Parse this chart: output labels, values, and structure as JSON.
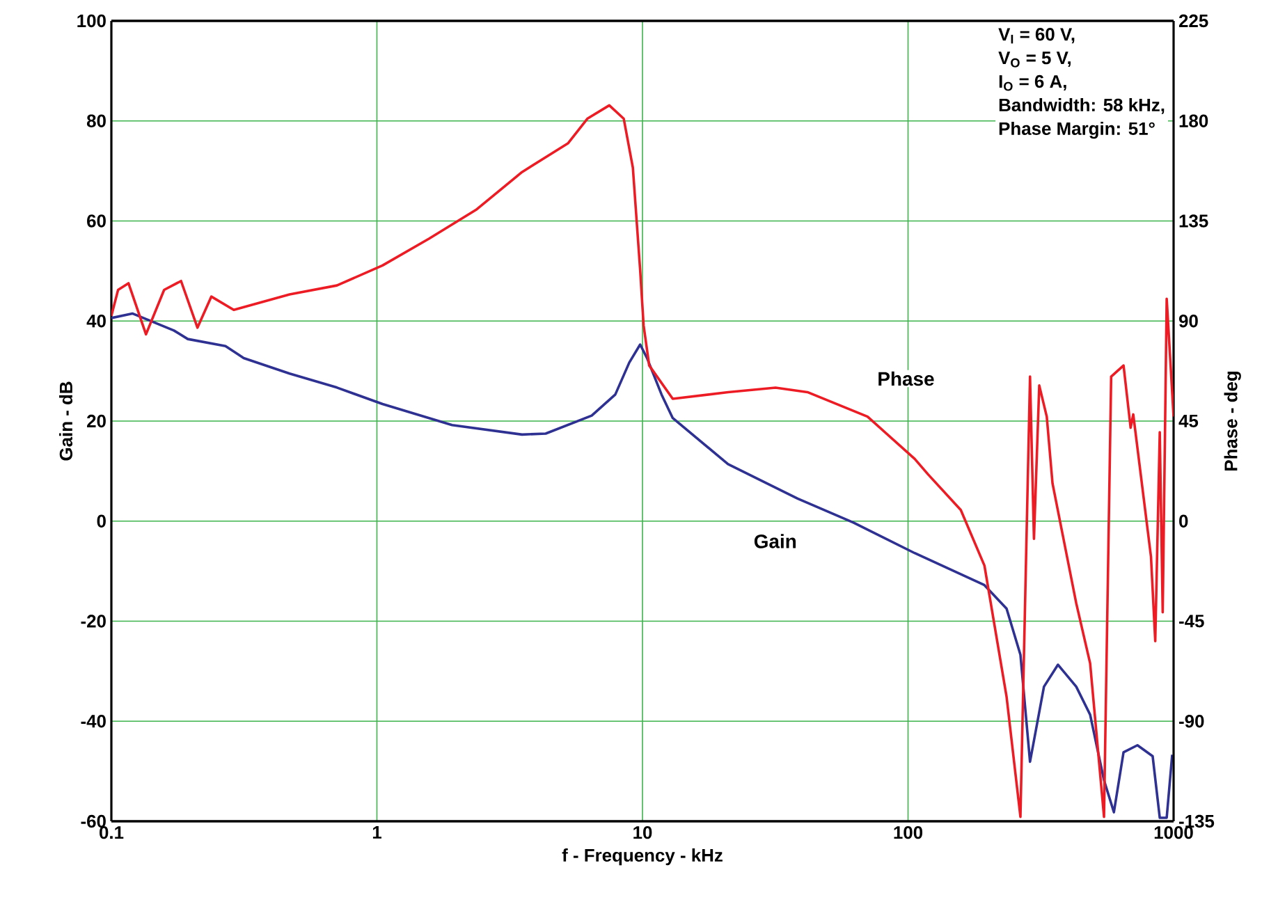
{
  "chart_data": {
    "type": "line",
    "xlabel": "f - Frequency - kHz",
    "ylabel": "Gain - dB",
    "y2label": "Phase - deg",
    "log": "x",
    "grid": true,
    "xlim": [
      0.1,
      1000
    ],
    "xticks": [
      0.1,
      1,
      10,
      100,
      1000
    ],
    "ylim": [
      -60,
      100
    ],
    "yticks": [
      -60,
      -40,
      -20,
      0,
      20,
      40,
      60,
      80,
      100
    ],
    "y2lim": [
      -135,
      225
    ],
    "y2ticks": [
      -135,
      -90,
      -45,
      0,
      45,
      90,
      135,
      180,
      225
    ],
    "annotations": [
      "V$_{I}$ = 60 V,",
      "V$_{O}$ = 5 V,",
      "I$_{O}$ = 6 A,",
      "Bandwidth: 58 kHz,",
      "Phase Margin: 51°"
    ],
    "series": [
      {
        "name": "Gain",
        "color": "#2e3192",
        "x": [
          0.1,
          0.12,
          0.172,
          0.194,
          0.269,
          0.315,
          0.469,
          0.707,
          1.05,
          1.92,
          3.52,
          4.32,
          6.44,
          7.9,
          8.92,
          9.8,
          10.4,
          11.8,
          13,
          21,
          38.4,
          62.3,
          106,
          194,
          235,
          265,
          288,
          325,
          367,
          430,
          485,
          547,
          596,
          648,
          731,
          834,
          887,
          942,
          988
        ],
        "values": [
          40.6,
          41.5,
          38.1,
          36.4,
          35,
          32.6,
          29.5,
          26.7,
          23.4,
          19.2,
          17.3,
          17.5,
          21.1,
          25.3,
          31.7,
          35.3,
          32.6,
          25.3,
          20.6,
          11.4,
          4.5,
          -0.3,
          -6.4,
          -12.8,
          -17.5,
          -26.7,
          -48.1,
          -33.1,
          -28.7,
          -33.1,
          -38.7,
          -51.8,
          -58.2,
          -46.2,
          -44.8,
          -47,
          -59.3,
          -59.3,
          -46.7
        ]
      },
      {
        "name": "Phase",
        "color": "#ed1c24",
        "axis": "y2",
        "x": [
          0.1,
          0.106,
          0.116,
          0.135,
          0.158,
          0.183,
          0.211,
          0.238,
          0.289,
          0.469,
          0.707,
          1.05,
          1.57,
          2.36,
          3.52,
          5.25,
          6.2,
          7.5,
          8.5,
          9.2,
          9.8,
          10.1,
          10.6,
          13,
          21,
          31.7,
          41.8,
          70.4,
          106,
          119,
          158,
          194,
          235,
          265,
          288,
          298,
          312,
          333,
          350,
          430,
          485,
          547,
          582,
          648,
          689,
          705,
          822,
          853,
          887,
          910,
          942,
          1000
        ],
        "values": [
          92.3,
          104,
          107,
          84,
          104,
          108,
          87,
          101,
          95,
          102,
          106,
          115,
          127,
          140,
          157,
          170,
          181,
          187,
          181,
          159,
          113,
          88,
          70,
          55,
          58,
          60,
          58,
          47,
          28,
          21,
          5,
          -20,
          -79,
          -133,
          65,
          -8,
          61,
          47,
          17,
          -37,
          -64,
          -133,
          65,
          70,
          42,
          48,
          -16,
          -54,
          40,
          -41,
          100,
          47
        ]
      }
    ]
  }
}
